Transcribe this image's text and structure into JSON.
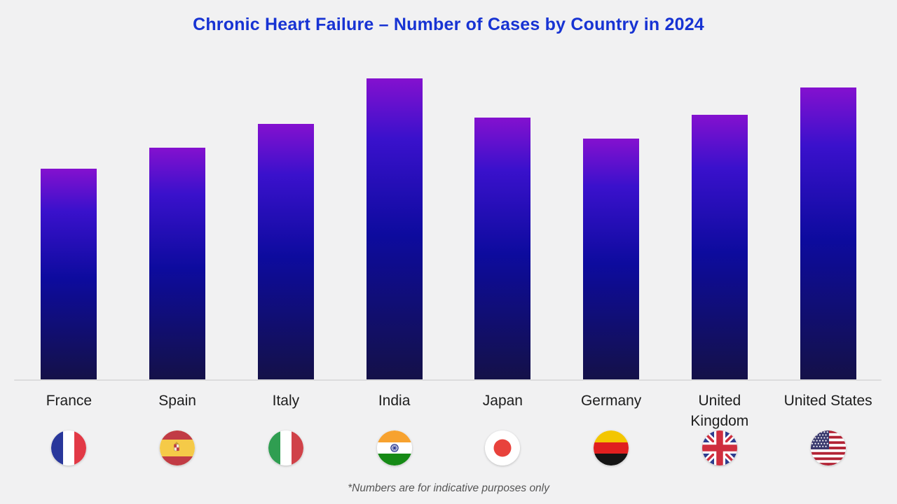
{
  "page": {
    "background_color": "#f1f1f2",
    "title": "Chronic Heart Failure – Number of Cases by Country in 2024",
    "title_color": "#1733d3",
    "footnote": "*Numbers are for indicative purposes only",
    "footnote_color": "#555555"
  },
  "chart_data": {
    "type": "bar",
    "title": "Chronic Heart Failure – Number of Cases by Country in 2024",
    "categories": [
      "France",
      "Spain",
      "Italy",
      "India",
      "Japan",
      "Germany",
      "United Kingdom",
      "United States"
    ],
    "values": [
      70,
      77,
      85,
      100,
      87,
      80,
      88,
      97
    ],
    "units": "relative indicative scale (tallest bar India = 100); no numeric y-axis shown",
    "xlabel": "",
    "ylabel": "",
    "ylim": [
      0,
      100
    ],
    "grid": false,
    "legend": false,
    "bar_gradient": [
      "#8411cf",
      "#3a11cc",
      "#0d0b9e",
      "#141148"
    ],
    "baseline_color": "#dcdcdd",
    "footnote": "*Numbers are for indicative purposes only",
    "countries": [
      {
        "label": "France",
        "flag_icon": "france-flag-icon"
      },
      {
        "label": "Spain",
        "flag_icon": "spain-flag-icon"
      },
      {
        "label": "Italy",
        "flag_icon": "italy-flag-icon"
      },
      {
        "label": "India",
        "flag_icon": "india-flag-icon"
      },
      {
        "label": "Japan",
        "flag_icon": "japan-flag-icon"
      },
      {
        "label": "Germany",
        "flag_icon": "germany-flag-icon"
      },
      {
        "label": "United Kingdom",
        "flag_icon": "united-kingdom-flag-icon"
      },
      {
        "label": "United States",
        "flag_icon": "united-states-flag-icon"
      }
    ]
  }
}
